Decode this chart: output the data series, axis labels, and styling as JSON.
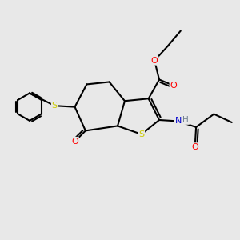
{
  "bg_color": "#e8e8e8",
  "atom_colors": {
    "C": "#000000",
    "O": "#ff0000",
    "N": "#0000cd",
    "S": "#cccc00",
    "H": "#708090"
  },
  "bond_color": "#000000",
  "bond_width": 1.5,
  "figsize": [
    3.0,
    3.0
  ],
  "dpi": 100,
  "xlim": [
    0,
    10
  ],
  "ylim": [
    0,
    10
  ]
}
